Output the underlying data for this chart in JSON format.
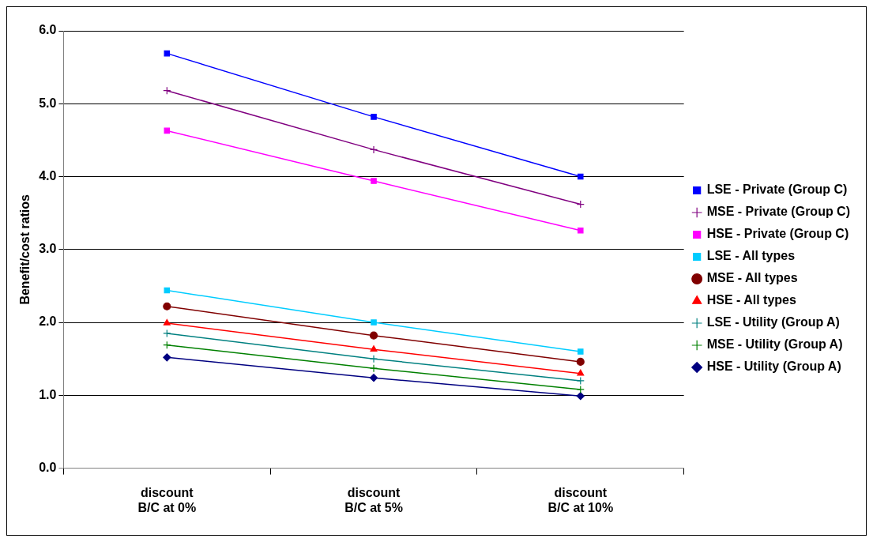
{
  "chart_data": {
    "type": "line",
    "ylabel": "Benefit/cost ratios",
    "categories": [
      "discount\nB/C at 0%",
      "discount\nB/C at 5%",
      "discount\nB/C at 10%"
    ],
    "series": [
      {
        "name": "LSE - Private (Group C)",
        "color": "#0000ff",
        "marker": "square",
        "values": [
          5.69,
          4.82,
          4.0
        ]
      },
      {
        "name": "MSE - Private (Group C)",
        "color": "#800080",
        "marker": "cross",
        "values": [
          5.18,
          4.37,
          3.62
        ]
      },
      {
        "name": "HSE - Private (Group C)",
        "color": "#ff00ff",
        "marker": "square",
        "values": [
          4.63,
          3.94,
          3.26
        ]
      },
      {
        "name": "LSE - All types",
        "color": "#00ccff",
        "marker": "square",
        "values": [
          2.44,
          2.0,
          1.6
        ]
      },
      {
        "name": "MSE - All types",
        "color": "#800000",
        "marker": "circle",
        "values": [
          2.22,
          1.82,
          1.46
        ]
      },
      {
        "name": "HSE - All types",
        "color": "#ff0000",
        "marker": "triangle",
        "values": [
          1.99,
          1.63,
          1.3
        ]
      },
      {
        "name": "LSE - Utility (Group A)",
        "color": "#008080",
        "marker": "cross",
        "values": [
          1.85,
          1.5,
          1.2
        ]
      },
      {
        "name": "MSE - Utility (Group A)",
        "color": "#008000",
        "marker": "cross",
        "values": [
          1.69,
          1.37,
          1.08
        ]
      },
      {
        "name": "HSE - Utility (Group A)",
        "color": "#000080",
        "marker": "diamond",
        "values": [
          1.52,
          1.24,
          0.99
        ]
      }
    ],
    "ylim": [
      0,
      6
    ],
    "yticks": [
      {
        "value": 0,
        "label": "0.0"
      },
      {
        "value": 1,
        "label": "1.0"
      },
      {
        "value": 2,
        "label": "2.0"
      },
      {
        "value": 3,
        "label": "3.0"
      },
      {
        "value": 4,
        "label": "4.0"
      },
      {
        "value": 5,
        "label": "5.0"
      },
      {
        "value": 6,
        "label": "6.0"
      }
    ],
    "grid": "y",
    "legend": "right",
    "line_style": "solid"
  }
}
